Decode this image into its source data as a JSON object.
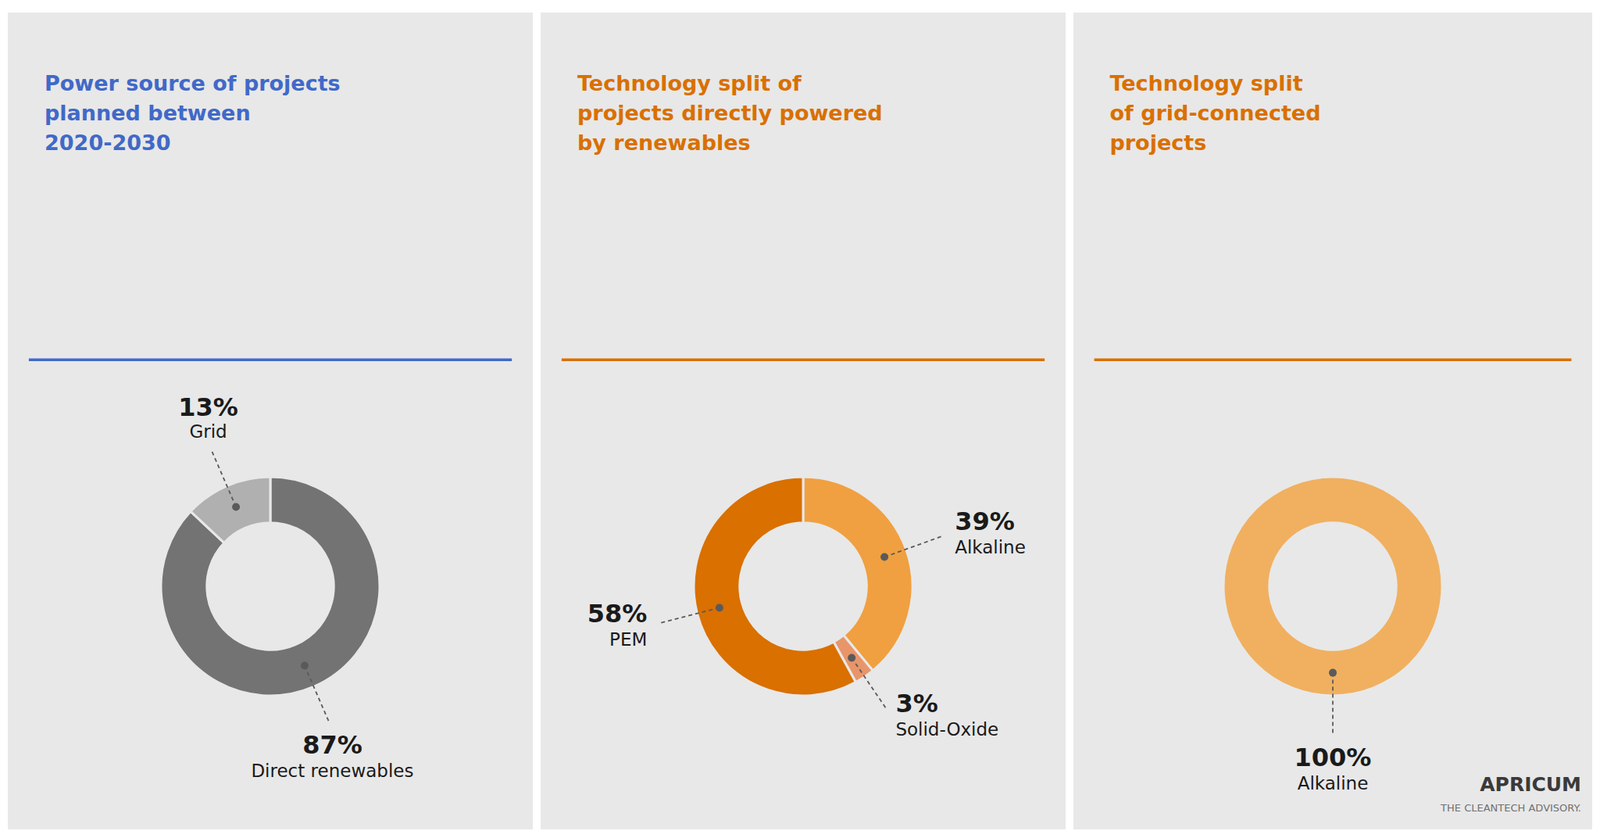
{
  "chart_data": [
    {
      "type": "donut",
      "title": "Power source of projects\nplanned between\n2020-2030",
      "color": "#4169c8",
      "categories": [
        "Direct renewables",
        "Grid"
      ],
      "values": [
        87,
        13
      ],
      "value_labels": [
        "87%",
        "13%"
      ],
      "colors": [
        "#737373",
        "#b0b0b0"
      ],
      "data_labels": true
    },
    {
      "type": "donut",
      "title": "Technology split of\nprojects directly powered\nby renewables",
      "color": "#d97000",
      "categories": [
        "Alkaline",
        "Solid-Oxide",
        "PEM"
      ],
      "values": [
        39,
        3,
        58
      ],
      "value_labels": [
        "39%",
        "3%",
        "58%"
      ],
      "colors": [
        "#f0a040",
        "#e8956a",
        "#d97000"
      ],
      "data_labels": true
    },
    {
      "type": "donut",
      "title": "Technology split\nof grid-connected\nprojects",
      "color": "#d97000",
      "categories": [
        "Alkaline"
      ],
      "values": [
        100
      ],
      "value_labels": [
        "100%"
      ],
      "colors": [
        "#f0b060"
      ],
      "data_labels": true,
      "annotations": [
        "APRICUM",
        "THE CLEANTECH ADVISORY."
      ]
    }
  ]
}
